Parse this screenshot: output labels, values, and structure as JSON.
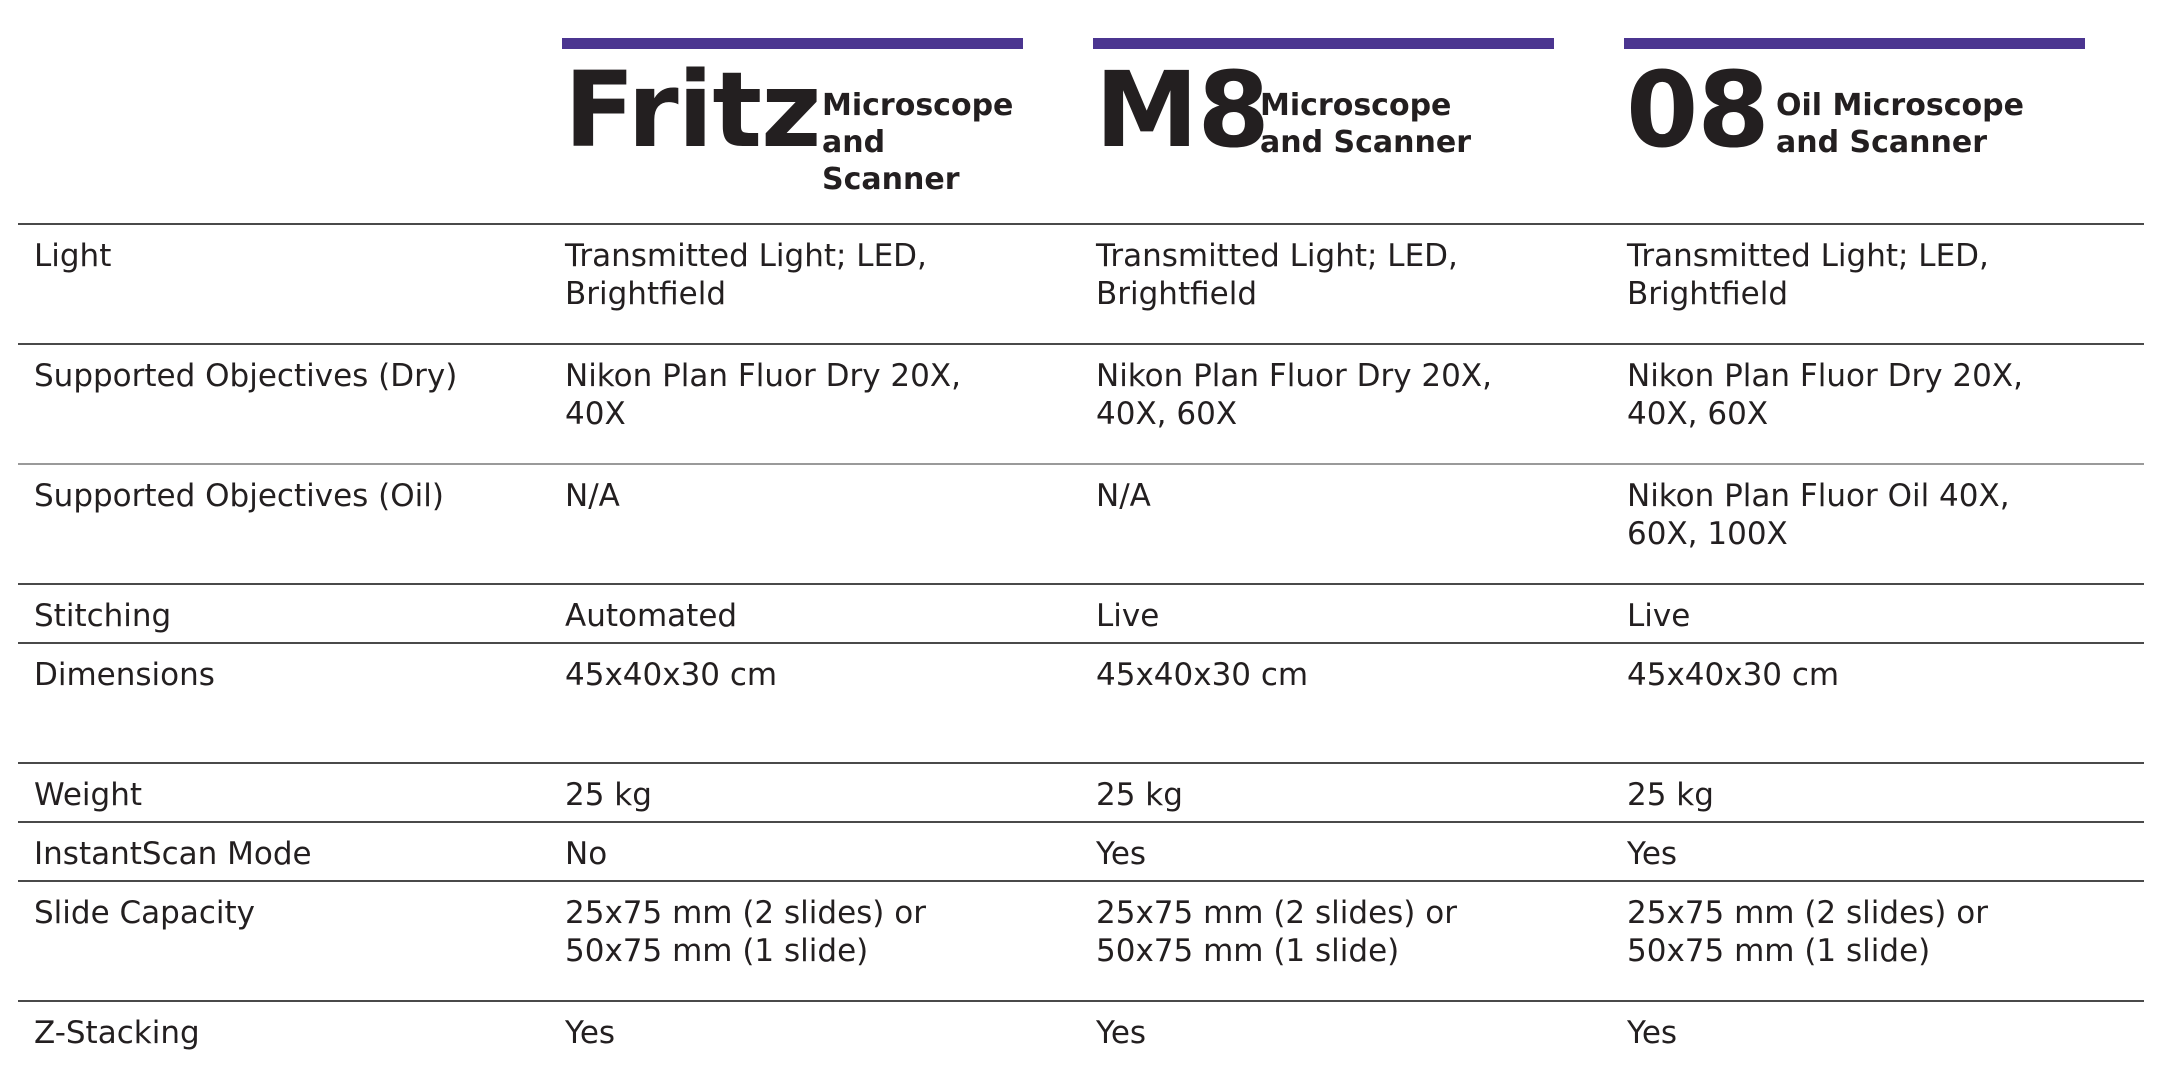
{
  "products": [
    {
      "model": "Fritz",
      "subtitle": "Microscope\nand Scanner"
    },
    {
      "model": "M8",
      "subtitle": "Microscope\nand Scanner"
    },
    {
      "model": "08",
      "subtitle": "Oil Microscope\nand Scanner"
    }
  ],
  "accent_color": "#4b3590",
  "rows": [
    {
      "label": "Light",
      "values": [
        "Transmitted Light; LED,\nBrightfield",
        "Transmitted Light; LED,\nBrightfield",
        "Transmitted Light; LED,\nBrightfield"
      ]
    },
    {
      "label": "Supported Objectives (Dry)",
      "values": [
        "Nikon Plan Fluor Dry 20X,\n40X",
        "Nikon Plan Fluor Dry 20X,\n40X, 60X",
        "Nikon Plan Fluor Dry 20X,\n40X, 60X"
      ]
    },
    {
      "label": "Supported Objectives (Oil)",
      "values": [
        "N/A",
        "N/A",
        "Nikon Plan Fluor Oil 40X,\n60X, 100X"
      ]
    },
    {
      "label": "Stitching",
      "values": [
        "Automated",
        "Live",
        "Live"
      ]
    },
    {
      "label": "Dimensions",
      "values": [
        "45x40x30 cm",
        "45x40x30 cm",
        "45x40x30 cm"
      ]
    },
    {
      "label": "Weight",
      "values": [
        "25 kg",
        "25 kg",
        "25 kg"
      ]
    },
    {
      "label": "InstantScan Mode",
      "values": [
        "No",
        "Yes",
        "Yes"
      ]
    },
    {
      "label": "Slide Capacity",
      "values": [
        "25x75 mm (2 slides) or\n50x75 mm (1 slide)",
        "25x75 mm (2 slides) or\n50x75 mm (1 slide)",
        "25x75 mm (2 slides) or\n50x75 mm (1 slide)"
      ]
    },
    {
      "label": "Z-Stacking",
      "values": [
        "Yes",
        "Yes",
        "Yes"
      ]
    }
  ]
}
